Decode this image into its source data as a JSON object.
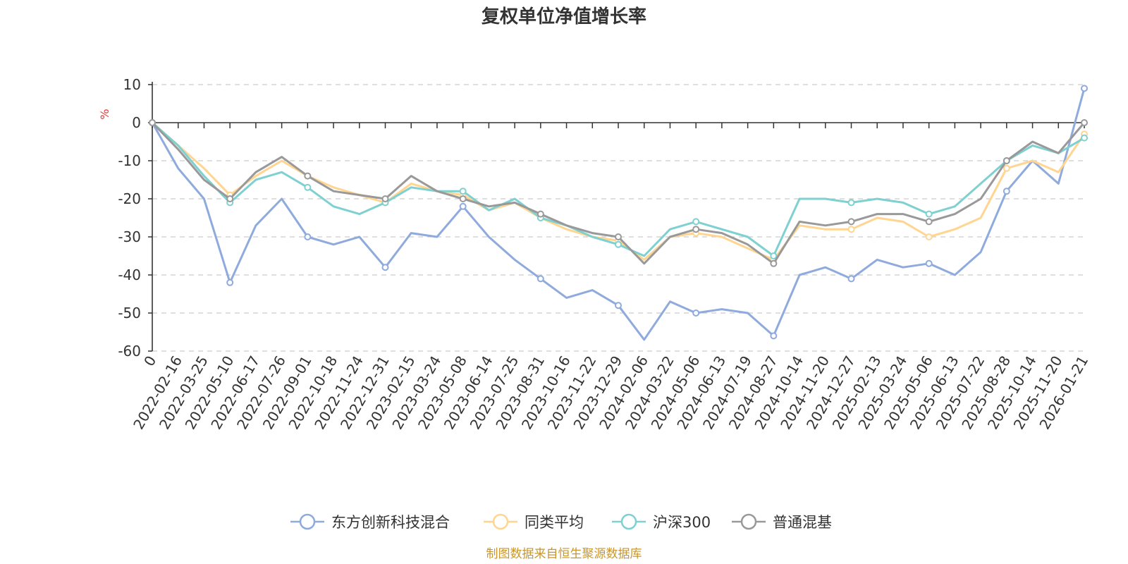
{
  "chart_data": {
    "type": "line",
    "title": "复权单位净值增长率",
    "ylabel": "%",
    "ylim": [
      -60,
      10
    ],
    "yticks": [
      10,
      0,
      -10,
      -20,
      -30,
      -40,
      -50,
      -60
    ],
    "grid": true,
    "legend_position": "bottom",
    "source": "制图数据来自恒生聚源数据库",
    "categories": [
      "0",
      "2022-02-16",
      "2022-03-25",
      "2022-05-10",
      "2022-06-17",
      "2022-07-26",
      "2022-09-01",
      "2022-10-18",
      "2022-11-24",
      "2022-12-31",
      "2023-02-15",
      "2023-03-24",
      "2023-05-08",
      "2023-06-14",
      "2023-07-25",
      "2023-08-31",
      "2023-10-16",
      "2023-11-22",
      "2023-12-29",
      "2024-02-06",
      "2024-03-22",
      "2024-05-06",
      "2024-06-13",
      "2024-07-19",
      "2024-08-27",
      "2024-10-14",
      "2024-11-20",
      "2024-12-27",
      "2025-02-13",
      "2025-03-24",
      "2025-05-06",
      "2025-06-13",
      "2025-07-22",
      "2025-08-28",
      "2025-10-14",
      "2025-11-20",
      "2026-01-21"
    ],
    "series": [
      {
        "name": "东方创新科技混合",
        "color": "#8faadc",
        "values": [
          0,
          -12,
          -20,
          -42,
          -27,
          -20,
          -30,
          -32,
          -30,
          -38,
          -29,
          -30,
          -22,
          -30,
          -36,
          -41,
          -46,
          -44,
          -48,
          -57,
          -47,
          -50,
          -49,
          -50,
          -56,
          -40,
          -38,
          -41,
          -36,
          -38,
          -37,
          -40,
          -34,
          -18,
          -10,
          -16,
          9
        ]
      },
      {
        "name": "同类平均",
        "color": "#ffd591",
        "values": [
          0,
          -6,
          -12,
          -19,
          -14,
          -10,
          -14,
          -17,
          -19,
          -21,
          -16,
          -18,
          -19,
          -23,
          -21,
          -25,
          -28,
          -30,
          -31,
          -36,
          -30,
          -29,
          -30,
          -33,
          -36,
          -27,
          -28,
          -28,
          -25,
          -26,
          -30,
          -28,
          -25,
          -12,
          -10,
          -13,
          -3
        ]
      },
      {
        "name": "沪深300",
        "color": "#7fd0d0",
        "values": [
          0,
          -6,
          -14,
          -21,
          -15,
          -13,
          -17,
          -22,
          -24,
          -21,
          -17,
          -18,
          -18,
          -23,
          -20,
          -25,
          -27,
          -30,
          -32,
          -35,
          -28,
          -26,
          -28,
          -30,
          -35,
          -20,
          -20,
          -21,
          -20,
          -21,
          -24,
          -22,
          -16,
          -10,
          -6,
          -8,
          -4
        ]
      },
      {
        "name": "普通混基",
        "color": "#999999",
        "values": [
          0,
          -7,
          -15,
          -20,
          -13,
          -9,
          -14,
          -18,
          -19,
          -20,
          -14,
          -18,
          -20,
          -22,
          -21,
          -24,
          -27,
          -29,
          -30,
          -37,
          -30,
          -28,
          -29,
          -32,
          -37,
          -26,
          -27,
          -26,
          -24,
          -24,
          -26,
          -24,
          -20,
          -10,
          -5,
          -8,
          0
        ]
      }
    ]
  }
}
